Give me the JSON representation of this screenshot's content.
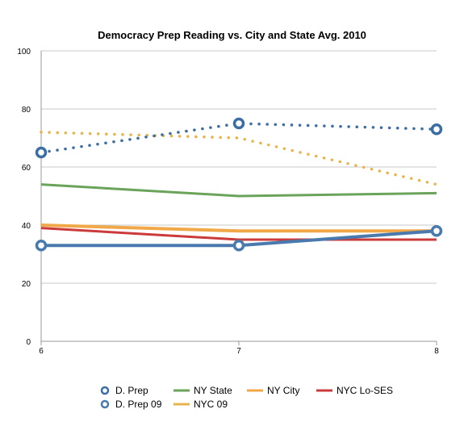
{
  "chart_data": {
    "type": "line",
    "title": "Democracy Prep Reading vs. City and State Avg. 2010",
    "x": [
      6,
      7,
      8
    ],
    "x_ticks": [
      "6",
      "7",
      "8"
    ],
    "y_ticks": [
      "0",
      "20",
      "40",
      "60",
      "80",
      "100"
    ],
    "ylim": [
      0,
      100
    ],
    "grid": "horizontal",
    "legend_position": "bottom",
    "series": [
      {
        "name": "D. Prep",
        "values": [
          65,
          75,
          73
        ],
        "color": "#3a6ea5",
        "style": "dotted",
        "markers": true
      },
      {
        "name": "D. Prep 09",
        "values": [
          33,
          33,
          38
        ],
        "color": "#4a7aad",
        "style": "solid",
        "markers": true
      },
      {
        "name": "NY State",
        "values": [
          54,
          50,
          51
        ],
        "color": "#6aa35a",
        "style": "solid",
        "markers": false
      },
      {
        "name": "NYC 09",
        "values": [
          72,
          70,
          54
        ],
        "color": "#e8b34a",
        "style": "dotted",
        "markers": false
      },
      {
        "name": "NY City",
        "values": [
          40,
          38,
          38
        ],
        "color": "#f0a848",
        "style": "solid",
        "markers": false
      },
      {
        "name": "NYC Lo-SES",
        "values": [
          39,
          35,
          35
        ],
        "color": "#cc3b3b",
        "style": "solid",
        "markers": false
      }
    ]
  }
}
